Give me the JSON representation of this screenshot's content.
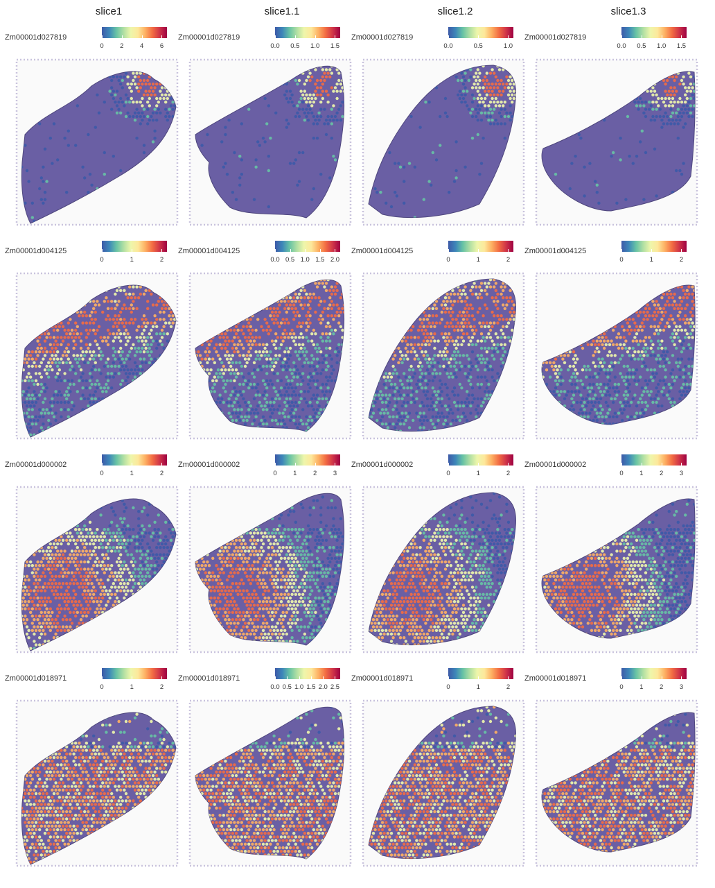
{
  "columns": [
    "slice1",
    "slice1.1",
    "slice1.2",
    "slice1.3"
  ],
  "rows": [
    {
      "gene": "Zm00001d027819",
      "ticks": [
        [
          "0",
          "2",
          "4",
          "6"
        ],
        [
          "0.0",
          "0.5",
          "1.0",
          "1.5"
        ],
        [
          "0.0",
          "0.5",
          "1.0"
        ],
        [
          "0.0",
          "0.5",
          "1.0",
          "1.5"
        ]
      ],
      "pattern": "hotspot-top-right"
    },
    {
      "gene": "Zm00001d004125",
      "ticks": [
        [
          "0",
          "1",
          "2"
        ],
        [
          "0.0",
          "0.5",
          "1.0",
          "1.5",
          "2.0"
        ],
        [
          "0",
          "1",
          "2"
        ],
        [
          "0",
          "1",
          "2"
        ]
      ],
      "pattern": "upper-band"
    },
    {
      "gene": "Zm00001d000002",
      "ticks": [
        [
          "0",
          "1",
          "2"
        ],
        [
          "0",
          "1",
          "2",
          "3"
        ],
        [
          "0",
          "1",
          "2"
        ],
        [
          "0",
          "1",
          "2",
          "3"
        ]
      ],
      "pattern": "lower-left-high"
    },
    {
      "gene": "Zm00001d018971",
      "ticks": [
        [
          "0",
          "1",
          "2"
        ],
        [
          "0.0",
          "0.5",
          "1.0",
          "1.5",
          "2.0",
          "2.5"
        ],
        [
          "0",
          "1",
          "2"
        ],
        [
          "0",
          "1",
          "2",
          "3"
        ]
      ],
      "pattern": "broad-lower"
    }
  ],
  "colorscale": [
    "#3d5aa8",
    "#67c2a5",
    "#eef6ab",
    "#fdb063",
    "#f26c43",
    "#9e0142"
  ],
  "tissue_color": "#5b4f9b"
}
